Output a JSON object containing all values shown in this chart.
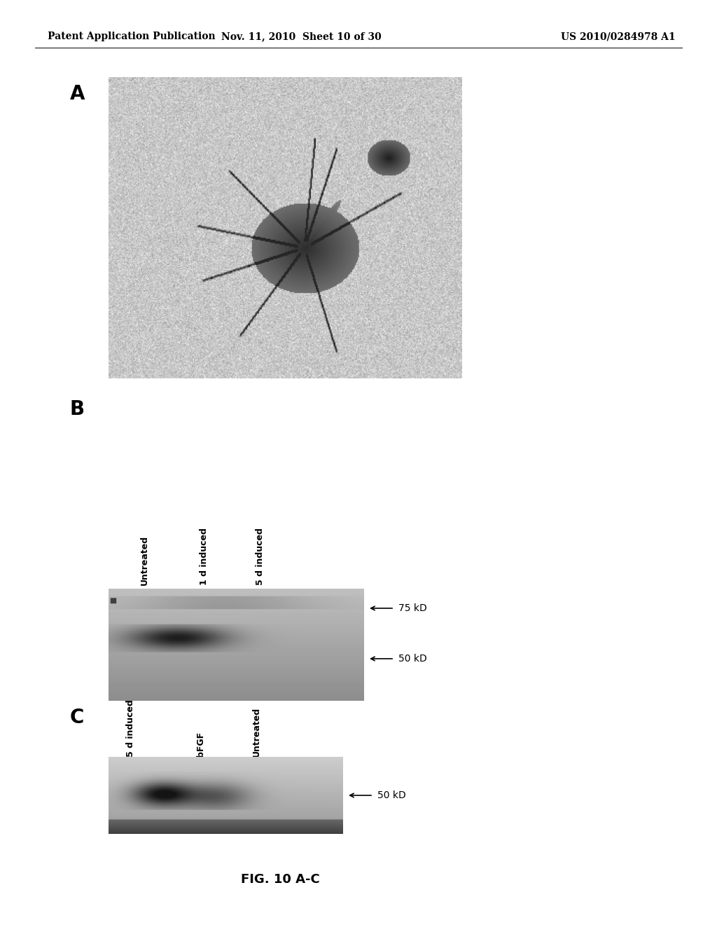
{
  "header_left": "Patent Application Publication",
  "header_mid": "Nov. 11, 2010  Sheet 10 of 30",
  "header_right": "US 2010/0284978 A1",
  "panel_A_label": "A",
  "panel_B_label": "B",
  "panel_C_label": "C",
  "panel_B_col_labels": [
    "Untreated",
    "1 d induced",
    "5 d induced"
  ],
  "panel_B_row_labels": [
    "75 kD",
    "50 kD"
  ],
  "panel_C_col_labels": [
    "5 d induced",
    "bFGF",
    "Untreated"
  ],
  "panel_C_row_labels": [
    "50 kD"
  ],
  "caption": "FIG. 10 A-C",
  "bg_color": "#ffffff",
  "header_fontsize": 10,
  "label_fontsize": 20,
  "col_label_fontsize": 9,
  "arrow_label_fontsize": 10,
  "caption_fontsize": 13
}
